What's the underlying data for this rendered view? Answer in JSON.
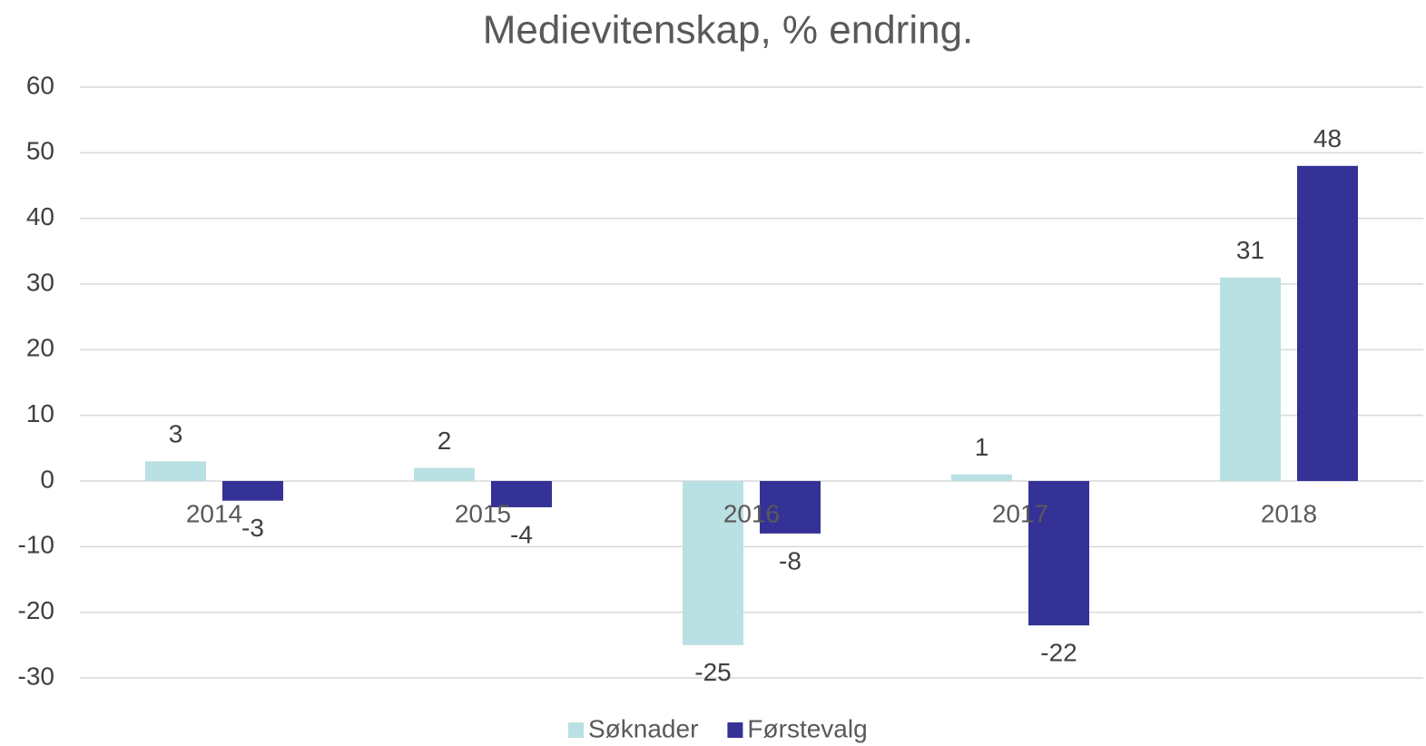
{
  "chart_data": {
    "type": "bar",
    "title": "Medievitenskap, % endring.",
    "categories": [
      "2014",
      "2015",
      "2016",
      "2017",
      "2018"
    ],
    "series": [
      {
        "name": "Søknader",
        "color": "#b9e0e2",
        "values": [
          3,
          2,
          -25,
          1,
          31
        ]
      },
      {
        "name": "Førstevalg",
        "color": "#343296",
        "values": [
          -3,
          -4,
          -8,
          -22,
          48
        ]
      }
    ],
    "ylim": [
      -30,
      60
    ],
    "yticks": [
      -30,
      -20,
      -10,
      0,
      10,
      20,
      30,
      40,
      50,
      60
    ],
    "grid": true,
    "legend": "bottom"
  }
}
